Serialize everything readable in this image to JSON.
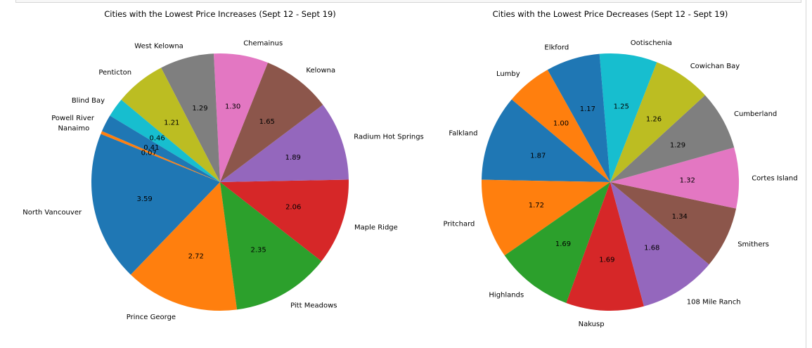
{
  "chart_data": [
    {
      "type": "pie",
      "title": "Cities with the Lowest Price Increases (Sept 12 - Sept 19)",
      "categories": [
        "North Vancouver",
        "Prince George",
        "Pitt Meadows",
        "Maple Ridge",
        "Radium Hot Springs",
        "Kelowna",
        "Chemainus",
        "West Kelowna",
        "Penticton",
        "Blind Bay",
        "Powell River",
        "Nanaimo"
      ],
      "values": [
        3.59,
        2.72,
        2.35,
        2.06,
        1.89,
        1.65,
        1.3,
        1.29,
        1.21,
        0.46,
        0.41,
        0.07
      ],
      "colors": [
        "#1f77b4",
        "#ff7f0e",
        "#2ca02c",
        "#d62728",
        "#9467bd",
        "#8c564b",
        "#e377c2",
        "#7f7f7f",
        "#bcbd22",
        "#17becf",
        "#1f77b4",
        "#ff7f0e"
      ],
      "value_labels": [
        "3.59",
        "2.72",
        "2.35",
        "2.06",
        "1.89",
        "1.65",
        "1.30",
        "1.29",
        "1.21",
        "0.46",
        "0.41",
        "0.07"
      ],
      "start_angle": 158,
      "direction": "counterclockwise",
      "legend": "none"
    },
    {
      "type": "pie",
      "title": "Cities with the Lowest Price Decreases (Sept 12 - Sept 19)",
      "categories": [
        "Falkland",
        "Pritchard",
        "Highlands",
        "Nakusp",
        "108 Mile Ranch",
        "Smithers",
        "Cortes Island",
        "Cumberland",
        "Cowichan Bay",
        "Ootischenia",
        "Elkford",
        "Lumby"
      ],
      "values": [
        1.87,
        1.72,
        1.69,
        1.69,
        1.68,
        1.34,
        1.32,
        1.29,
        1.26,
        1.25,
        1.17,
        1.0
      ],
      "colors": [
        "#1f77b4",
        "#ff7f0e",
        "#2ca02c",
        "#d62728",
        "#9467bd",
        "#8c564b",
        "#e377c2",
        "#7f7f7f",
        "#bcbd22",
        "#17becf",
        "#1f77b4",
        "#ff7f0e"
      ],
      "value_labels": [
        "1.87",
        "1.72",
        "1.69",
        "1.69",
        "1.68",
        "1.34",
        "1.32",
        "1.29",
        "1.26",
        "1.25",
        "1.17",
        "1.00"
      ],
      "start_angle": 140,
      "direction": "counterclockwise",
      "legend": "none"
    }
  ]
}
